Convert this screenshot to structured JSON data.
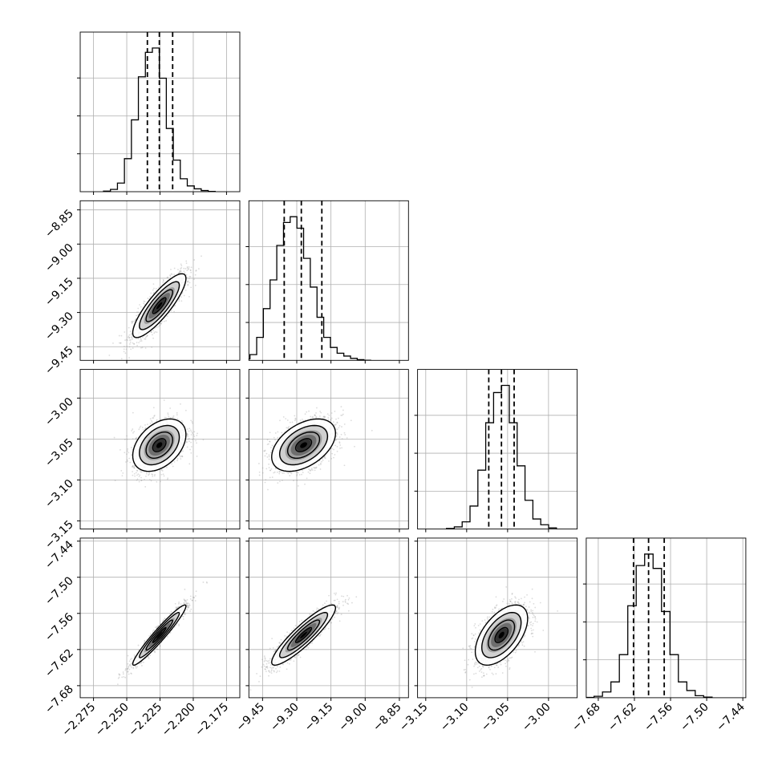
{
  "chart_data": {
    "type": "corner",
    "grid": true,
    "title": "",
    "parameters": [
      {
        "index": 0,
        "label": "",
        "range": [
          -2.285,
          -2.165
        ],
        "ticks": [
          -2.275,
          -2.25,
          -2.225,
          -2.2,
          -2.175
        ],
        "tick_labels": [
          "−2.275",
          "−2.250",
          "−2.225",
          "−2.200",
          "−2.175"
        ],
        "quantiles": [
          -2.2345,
          -2.2255,
          -2.2155
        ],
        "histogram": [
          0.004,
          0.016,
          0.06,
          0.23,
          0.5,
          0.8,
          0.97,
          1.0,
          0.79,
          0.44,
          0.22,
          0.09,
          0.04,
          0.02,
          0.008,
          0.002
        ],
        "mean": -2.2255,
        "sigma": 0.01
      },
      {
        "index": 1,
        "label": "",
        "range": [
          -9.51,
          -8.81
        ],
        "ticks": [
          -9.45,
          -9.3,
          -9.15,
          -9.0,
          -8.85
        ],
        "tick_labels": [
          "−9.45",
          "−9.30",
          "−9.15",
          "−9.00",
          "−8.85"
        ],
        "quantiles": [
          -9.355,
          -9.28,
          -9.19
        ],
        "histogram": [
          0.002,
          0.01,
          0.04,
          0.16,
          0.36,
          0.56,
          0.8,
          0.96,
          1.0,
          0.92,
          0.71,
          0.51,
          0.3,
          0.16,
          0.09,
          0.05,
          0.03,
          0.014,
          0.005,
          0.001
        ],
        "mean": -9.27,
        "sigma": 0.07
      },
      {
        "index": 2,
        "label": "",
        "range": [
          -3.16,
          -2.965
        ],
        "ticks": [
          -3.15,
          -3.1,
          -3.05,
          -3.0
        ],
        "tick_labels": [
          "−3.15",
          "−3.10",
          "−3.05",
          "−3.00"
        ],
        "quantiles": [
          -3.073,
          -3.0575,
          -3.042
        ],
        "histogram": [
          0.004,
          0.015,
          0.05,
          0.16,
          0.41,
          0.74,
          0.95,
          1.0,
          0.74,
          0.44,
          0.2,
          0.07,
          0.03,
          0.008
        ],
        "mean": -3.0575,
        "sigma": 0.016
      },
      {
        "index": 3,
        "label": "",
        "range": [
          -7.7,
          -7.435
        ],
        "ticks": [
          -7.68,
          -7.62,
          -7.56,
          -7.5,
          -7.44
        ],
        "tick_labels": [
          "−7.68",
          "−7.62",
          "−7.56",
          "−7.50",
          "−7.44"
        ],
        "quantiles": [
          -7.6215,
          -7.5965,
          -7.5705
        ],
        "histogram": [
          0.002,
          0.01,
          0.04,
          0.11,
          0.3,
          0.64,
          0.92,
          1.0,
          0.9,
          0.6,
          0.3,
          0.11,
          0.05,
          0.014,
          0.004
        ],
        "mean": -7.596,
        "sigma": 0.025
      }
    ],
    "correlations": [
      {
        "row": 1,
        "col": 0,
        "rho": 0.85
      },
      {
        "row": 2,
        "col": 0,
        "rho": 0.4
      },
      {
        "row": 2,
        "col": 1,
        "rho": 0.45
      },
      {
        "row": 3,
        "col": 0,
        "rho": 0.96
      },
      {
        "row": 3,
        "col": 1,
        "rho": 0.9
      },
      {
        "row": 3,
        "col": 2,
        "rho": 0.55
      }
    ],
    "colors": {
      "line": "#000000",
      "grid": "#b0b0b0",
      "scatter": "#9a9a9a",
      "density_dark": "#000000"
    }
  }
}
